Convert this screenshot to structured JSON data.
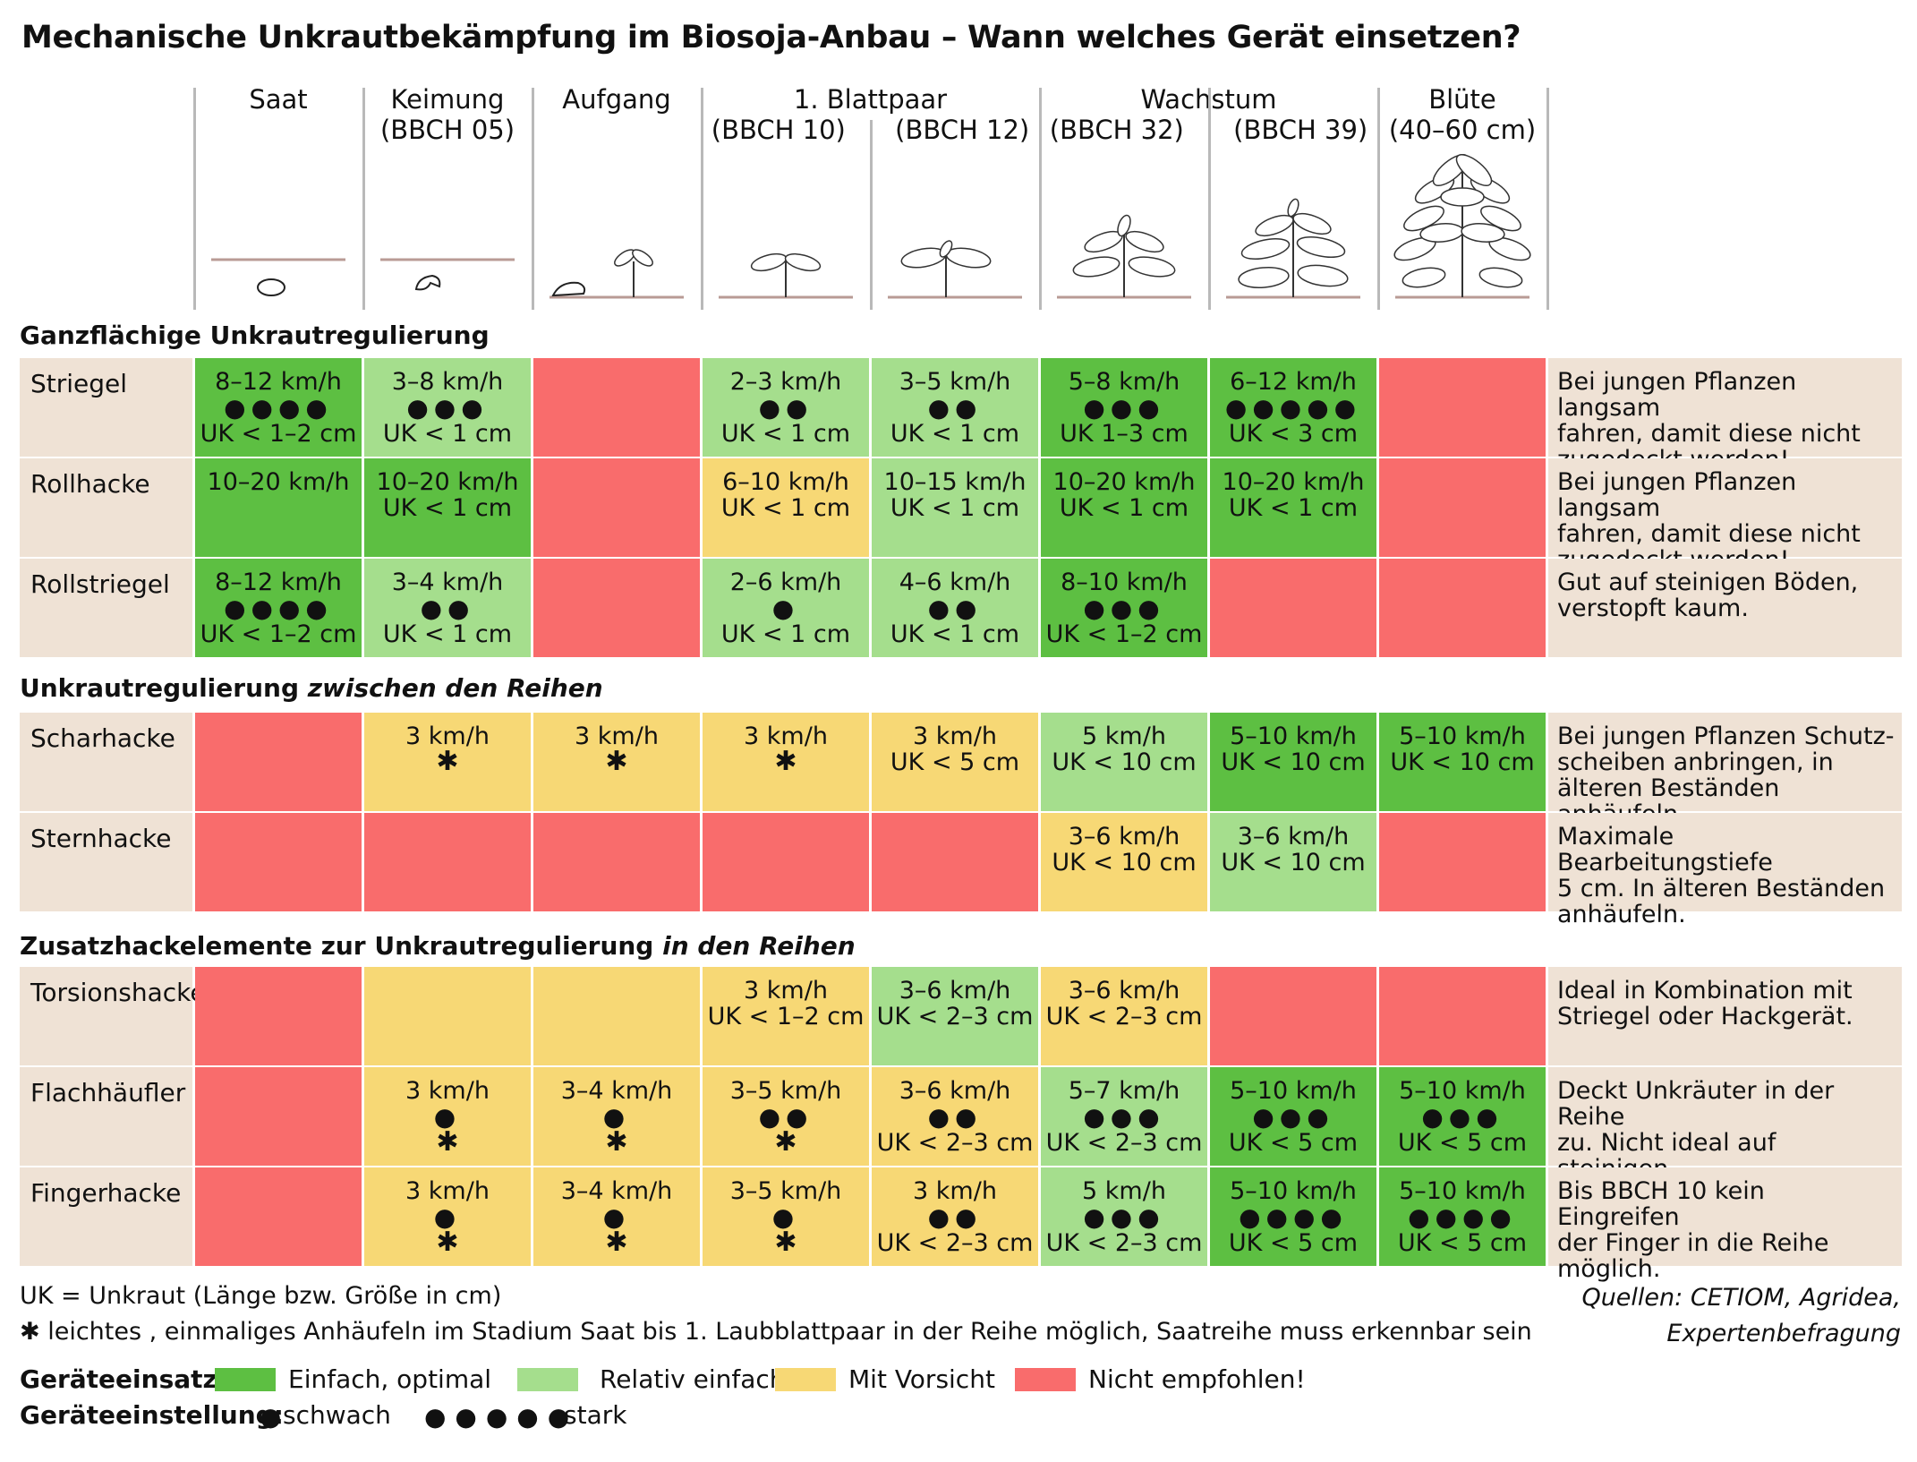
{
  "title": "Mechanische Unkrautbekämpfung im Biosoja-Anbau – Wann welches Gerät einsetzen?",
  "stages": [
    {
      "name": "Saat",
      "sub": ""
    },
    {
      "name": "Keimung",
      "sub": "(BBCH 05)"
    },
    {
      "name": "Aufgang",
      "sub": ""
    },
    {
      "name": "1. Blattpaar",
      "sub": "(BBCH 10)      (BBCH 12)"
    },
    {
      "name": "Wachstum",
      "sub": "(BBCH 32)      (BBCH 39)"
    },
    {
      "name": "Blüte",
      "sub": "(40–60 cm)"
    }
  ],
  "sections": [
    {
      "title": "Ganzflächige Unkrautregulierung",
      "title_italic": "",
      "rows": [
        {
          "name": "Striegel",
          "cells": [
            {
              "c": "g1",
              "lines": [
                "8–12 km/h",
                "●●●●",
                "UK < 1–2 cm"
              ]
            },
            {
              "c": "g2",
              "lines": [
                "3–8 km/h",
                "●●●",
                "UK < 1 cm"
              ]
            },
            {
              "c": "r",
              "lines": []
            },
            {
              "c": "g2",
              "lines": [
                "2–3 km/h",
                "●●",
                "UK < 1 cm"
              ]
            },
            {
              "c": "g2",
              "lines": [
                "3–5 km/h",
                "●●",
                "UK < 1 cm"
              ]
            },
            {
              "c": "g1",
              "lines": [
                "5–8 km/h",
                "●●●",
                "UK 1–3 cm"
              ]
            },
            {
              "c": "g1",
              "lines": [
                "6–12 km/h",
                "●●●●●",
                "UK < 3 cm"
              ]
            },
            {
              "c": "r",
              "lines": []
            }
          ],
          "note": "Bei jungen Pflanzen langsam\nfahren, damit diese nicht\nzugedeckt werden!"
        },
        {
          "name": "Rollhacke",
          "cells": [
            {
              "c": "g1",
              "lines": [
                "10–20 km/h"
              ]
            },
            {
              "c": "g1",
              "lines": [
                "10–20 km/h",
                "UK < 1 cm"
              ]
            },
            {
              "c": "r",
              "lines": []
            },
            {
              "c": "y",
              "lines": [
                "6–10 km/h",
                "UK < 1 cm"
              ]
            },
            {
              "c": "g2",
              "lines": [
                "10–15 km/h",
                "UK < 1 cm"
              ]
            },
            {
              "c": "g1",
              "lines": [
                "10–20 km/h",
                "UK < 1 cm"
              ]
            },
            {
              "c": "g1",
              "lines": [
                "10–20 km/h",
                "UK < 1 cm"
              ]
            },
            {
              "c": "r",
              "lines": []
            }
          ],
          "note": "Bei jungen Pflanzen langsam\nfahren, damit diese nicht\nzugedeckt werden!"
        },
        {
          "name": "Rollstriegel",
          "cells": [
            {
              "c": "g1",
              "lines": [
                "8–12 km/h",
                "●●●●",
                "UK < 1–2 cm"
              ]
            },
            {
              "c": "g2",
              "lines": [
                "3–4 km/h",
                "●●",
                "UK < 1 cm"
              ]
            },
            {
              "c": "r",
              "lines": []
            },
            {
              "c": "g2",
              "lines": [
                "2–6 km/h",
                "●",
                "UK < 1 cm"
              ]
            },
            {
              "c": "g2",
              "lines": [
                "4–6 km/h",
                "●●",
                "UK < 1 cm"
              ]
            },
            {
              "c": "g1",
              "lines": [
                "8–10 km/h",
                "●●●",
                "UK < 1–2 cm"
              ]
            },
            {
              "c": "r",
              "lines": []
            },
            {
              "c": "r",
              "lines": []
            }
          ],
          "note": "Gut auf steinigen Böden,\nverstopft kaum."
        }
      ]
    },
    {
      "title": "Unkrautregulierung ",
      "title_italic": "zwischen den Reihen",
      "rows": [
        {
          "name": "Scharhacke",
          "cells": [
            {
              "c": "r",
              "lines": []
            },
            {
              "c": "y",
              "lines": [
                "3 km/h",
                "*"
              ]
            },
            {
              "c": "y",
              "lines": [
                "3 km/h",
                "*"
              ]
            },
            {
              "c": "y",
              "lines": [
                "3 km/h",
                "*"
              ]
            },
            {
              "c": "y",
              "lines": [
                "3 km/h",
                "UK < 5 cm"
              ]
            },
            {
              "c": "g2",
              "lines": [
                "5 km/h",
                "UK < 10 cm"
              ]
            },
            {
              "c": "g1",
              "lines": [
                "5–10 km/h",
                "UK < 10 cm"
              ]
            },
            {
              "c": "g1",
              "lines": [
                "5–10 km/h",
                "UK < 10 cm"
              ]
            }
          ],
          "note": "Bei jungen Pflanzen Schutz-\nscheiben anbringen, in\nälteren Beständen anhäufeln."
        },
        {
          "name": "Sternhacke",
          "cells": [
            {
              "c": "r",
              "lines": []
            },
            {
              "c": "r",
              "lines": []
            },
            {
              "c": "r",
              "lines": []
            },
            {
              "c": "r",
              "lines": []
            },
            {
              "c": "r",
              "lines": []
            },
            {
              "c": "y",
              "lines": [
                "3–6 km/h",
                "UK < 10 cm"
              ]
            },
            {
              "c": "g2",
              "lines": [
                "3–6 km/h",
                "UK < 10 cm"
              ]
            },
            {
              "c": "r",
              "lines": []
            }
          ],
          "note": "Maximale Bearbeitungstiefe\n5 cm. In älteren Beständen\nanhäufeln."
        }
      ]
    },
    {
      "title": "Zusatzhackelemente zur Unkrautregulierung ",
      "title_italic": "in den Reihen",
      "rows": [
        {
          "name": "Torsionshacke",
          "cells": [
            {
              "c": "r",
              "lines": []
            },
            {
              "c": "y",
              "lines": []
            },
            {
              "c": "y",
              "lines": []
            },
            {
              "c": "y",
              "lines": [
                "3 km/h",
                "UK < 1–2 cm"
              ]
            },
            {
              "c": "g2",
              "lines": [
                "3–6 km/h",
                "UK < 2–3 cm"
              ]
            },
            {
              "c": "y",
              "lines": [
                "3–6 km/h",
                "UK < 2–3 cm"
              ]
            },
            {
              "c": "r",
              "lines": []
            },
            {
              "c": "r",
              "lines": []
            }
          ],
          "note": "Ideal in Kombination mit\nStriegel oder Hackgerät."
        },
        {
          "name": "Flachhäufler",
          "cells": [
            {
              "c": "r",
              "lines": []
            },
            {
              "c": "y",
              "lines": [
                "3 km/h",
                "●",
                "*"
              ]
            },
            {
              "c": "y",
              "lines": [
                "3–4 km/h",
                "●",
                "*"
              ]
            },
            {
              "c": "y",
              "lines": [
                "3–5 km/h",
                "●●",
                "*"
              ]
            },
            {
              "c": "y",
              "lines": [
                "3–6 km/h",
                "●●",
                "UK < 2–3 cm"
              ]
            },
            {
              "c": "g2",
              "lines": [
                "5–7 km/h",
                "●●●",
                "UK < 2–3 cm"
              ]
            },
            {
              "c": "g1",
              "lines": [
                "5–10 km/h",
                "●●●",
                "UK < 5 cm"
              ]
            },
            {
              "c": "g1",
              "lines": [
                "5–10 km/h",
                "●●●",
                "UK < 5 cm"
              ]
            }
          ],
          "note": "Deckt Unkräuter in der Reihe\nzu. Nicht ideal auf steinigen\nBöden."
        },
        {
          "name": "Fingerhacke",
          "cells": [
            {
              "c": "r",
              "lines": []
            },
            {
              "c": "y",
              "lines": [
                "3 km/h",
                "●",
                "*"
              ]
            },
            {
              "c": "y",
              "lines": [
                "3–4 km/h",
                "●",
                "*"
              ]
            },
            {
              "c": "y",
              "lines": [
                "3–5 km/h",
                "●",
                "*"
              ]
            },
            {
              "c": "y",
              "lines": [
                "3 km/h",
                "●●",
                "UK < 2–3 cm"
              ]
            },
            {
              "c": "g2",
              "lines": [
                "5 km/h",
                "●●●",
                "UK < 2–3 cm"
              ]
            },
            {
              "c": "g1",
              "lines": [
                "5–10 km/h",
                "●●●●",
                "UK < 5 cm"
              ]
            },
            {
              "c": "g1",
              "lines": [
                "5–10 km/h",
                "●●●●",
                "UK < 5 cm"
              ]
            }
          ],
          "note": "Bis BBCH 10 kein Eingreifen\nder Finger in die Reihe\nmöglich."
        }
      ]
    }
  ],
  "footnotes": {
    "uk": "UK = Unkraut (Länge bzw. Größe in cm)",
    "asterisk": "✱ leichtes , einmaliges Anhäufeln im Stadium Saat bis 1. Laubblattpaar in der Reihe möglich, Saatreihe muss erkennbar sein",
    "source_1": "Quellen: CETIOM, Agridea,",
    "source_2": "Expertenbefragung"
  },
  "legend": {
    "usage_label": "Geräteeinsatz:",
    "setting_label": "Geräteeinstellung:",
    "items": [
      {
        "label": "Einfach, optimal",
        "color": "#5dbf42"
      },
      {
        "label": "Relativ einfach",
        "color": "#a5de8d"
      },
      {
        "label": "Mit Vorsicht",
        "color": "#f7d875"
      },
      {
        "label": "Nicht empfohlen!",
        "color": "#f96c6c"
      }
    ],
    "weak_dots": "●",
    "weak_label": "schwach",
    "strong_dots": "●●●●●",
    "strong_label": "stark"
  }
}
